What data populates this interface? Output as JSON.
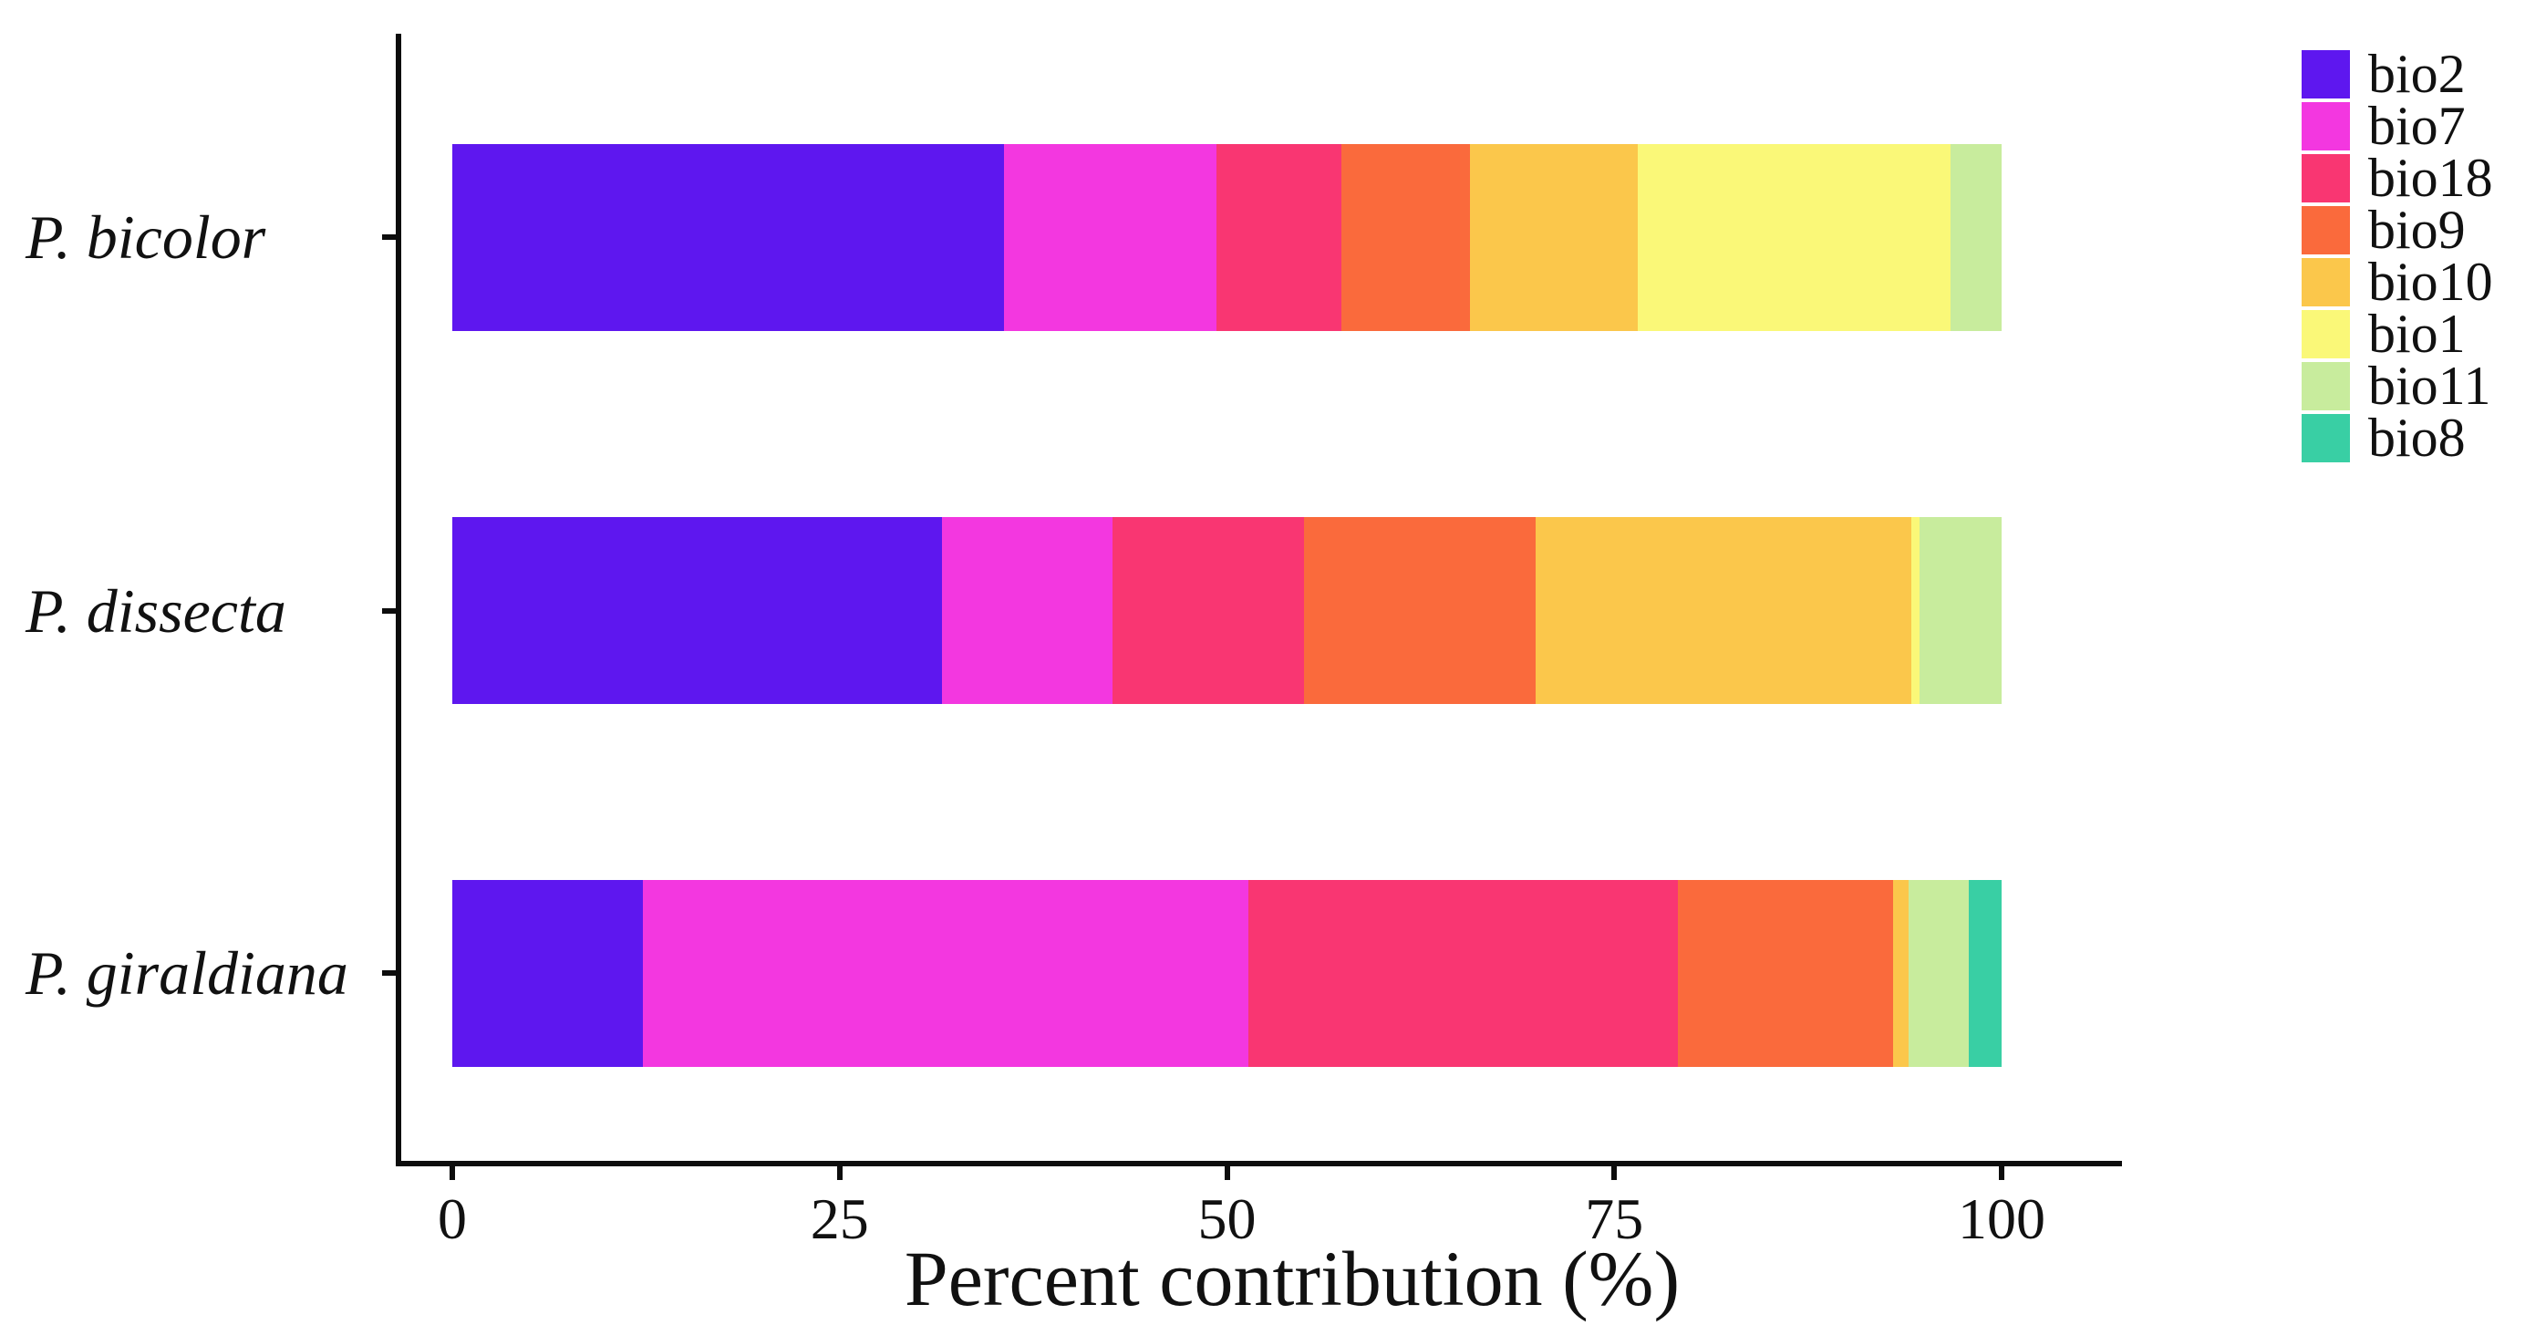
{
  "figure": {
    "background_color": "#ffffff",
    "axis_color": "#0d0d0d",
    "text_color": "#111111"
  },
  "chart_data": {
    "type": "bar",
    "orientation": "horizontal",
    "stacked": true,
    "title": "",
    "xlabel": "Percent contribution (%)",
    "ylabel": "",
    "xlim": [
      0,
      100
    ],
    "x_ticks": [
      0,
      25,
      50,
      75,
      100
    ],
    "x_tick_labels": [
      "0",
      "25",
      "50",
      "75",
      "100"
    ],
    "grid": false,
    "legend_position": "top-right",
    "categories": [
      "P. bicolor",
      "P. dissecta",
      "P. giraldiana"
    ],
    "series": [
      {
        "name": "bio2",
        "color": "#5E17EF",
        "values": [
          35.6,
          31.6,
          12.3
        ]
      },
      {
        "name": "bio7",
        "color": "#F337E0",
        "values": [
          13.7,
          11.0,
          39.1
        ]
      },
      {
        "name": "bio18",
        "color": "#F93672",
        "values": [
          8.1,
          12.4,
          27.7
        ]
      },
      {
        "name": "bio9",
        "color": "#FA6A3C",
        "values": [
          8.3,
          14.9,
          13.9
        ]
      },
      {
        "name": "bio10",
        "color": "#FBC74B",
        "values": [
          10.8,
          24.3,
          1.0
        ]
      },
      {
        "name": "bio1",
        "color": "#FAF878",
        "values": [
          20.2,
          0.5,
          0
        ]
      },
      {
        "name": "bio11",
        "color": "#C8EC9D",
        "values": [
          3.3,
          5.3,
          3.9
        ]
      },
      {
        "name": "bio8",
        "color": "#39CFA4",
        "values": [
          0,
          0,
          2.1
        ]
      }
    ]
  }
}
